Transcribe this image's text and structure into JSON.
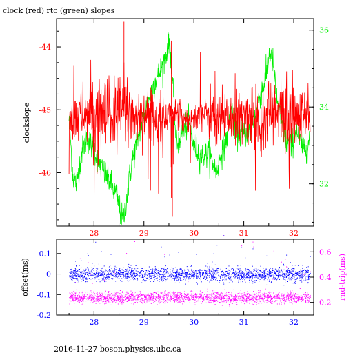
{
  "title": "clock (red) rtc (green) slopes",
  "footer": "2016-11-27 boson.physics.ubc.ca",
  "colors": {
    "clock": "#ff0000",
    "rtc": "#00ee00",
    "offset": "#0000ff",
    "rndtrip": "#ff00ff",
    "axis": "#000000"
  },
  "chart_data": [
    {
      "type": "line",
      "xlim": [
        27.25,
        32.4
      ],
      "x_ticks": [
        "28",
        "29",
        "30",
        "31",
        "32"
      ],
      "ylabel": "clockslope",
      "ylim": [
        -46.85,
        -43.55
      ],
      "y_ticks": [
        "-44",
        "-45",
        "-46"
      ],
      "y2label": "",
      "y2lim": [
        30.9,
        36.3
      ],
      "y2_ticks": [
        "36",
        "34",
        "32"
      ],
      "grid": false,
      "series": [
        {
          "name": "clock",
          "color": "red",
          "note": "dense noisy trace around -45.1",
          "x": [
            27.5,
            27.7,
            27.9,
            28.1,
            28.3,
            28.5,
            28.6,
            28.8,
            29.0,
            29.2,
            29.4,
            29.5,
            29.7,
            29.9,
            30.1,
            30.3,
            30.5,
            30.7,
            30.9,
            31.1,
            31.3,
            31.5,
            31.6,
            31.8,
            32.0,
            32.2,
            32.33
          ],
          "y": [
            -45.1,
            -45.1,
            -45.05,
            -45.1,
            -45.15,
            -45.1,
            -45.0,
            -45.1,
            -45.1,
            -45.1,
            -45.2,
            -45.05,
            -45.1,
            -45.15,
            -45.1,
            -45.05,
            -45.1,
            -45.1,
            -45.15,
            -45.1,
            -45.15,
            -45.1,
            -45.05,
            -45.1,
            -45.15,
            -45.1,
            -45.1
          ]
        },
        {
          "name": "rtc",
          "color": "green",
          "axis": "right",
          "x": [
            27.5,
            27.58,
            27.65,
            27.75,
            27.85,
            28.0,
            28.15,
            28.3,
            28.45,
            28.58,
            28.65,
            28.75,
            28.9,
            29.05,
            29.2,
            29.35,
            29.45,
            29.52,
            29.58,
            29.65,
            29.75,
            29.9,
            30.0,
            30.15,
            30.3,
            30.45,
            30.55,
            30.65,
            30.75,
            30.85,
            31.0,
            31.15,
            31.3,
            31.45,
            31.52,
            31.58,
            31.65,
            31.75,
            31.85,
            31.95,
            32.05,
            32.15,
            32.25,
            32.33
          ],
          "y": [
            33.7,
            32.2,
            32.0,
            32.8,
            33.2,
            32.9,
            32.4,
            32.1,
            31.7,
            31.0,
            31.6,
            32.5,
            33.3,
            34.0,
            34.6,
            35.0,
            35.4,
            35.7,
            34.5,
            33.0,
            33.3,
            33.6,
            33.0,
            32.7,
            32.8,
            32.3,
            32.8,
            33.1,
            34.0,
            33.3,
            33.3,
            33.4,
            34.2,
            34.8,
            35.5,
            35.2,
            34.3,
            33.6,
            33.1,
            33.0,
            33.4,
            33.0,
            32.9,
            33.2
          ]
        }
      ]
    },
    {
      "type": "scatter",
      "xlim": [
        27.25,
        32.4
      ],
      "x_ticks": [
        "28",
        "29",
        "30",
        "31",
        "32"
      ],
      "ylabel": "offset(ms)",
      "ylim": [
        -0.2,
        0.17
      ],
      "y_ticks": [
        "0.1",
        "0",
        "-0.1",
        "-0.2"
      ],
      "y2label": "rnd-trip(ms)",
      "y2lim": [
        0.1,
        0.7
      ],
      "y2_ticks": [
        "0.6",
        "0.4",
        "0.2"
      ],
      "grid": false,
      "series": [
        {
          "name": "offset",
          "color": "blue",
          "axis": "left",
          "x": [
            27.5,
            28.0,
            28.5,
            29.0,
            29.5,
            30.0,
            30.5,
            31.0,
            31.5,
            32.0,
            32.33
          ],
          "y": [
            0.0,
            0.0,
            0.005,
            0.0,
            0.0,
            0.0,
            0.0,
            0.0,
            0.0,
            0.0,
            0.0
          ],
          "spread": [
            -0.05,
            0.05
          ]
        },
        {
          "name": "rnd-trip",
          "color": "magenta",
          "axis": "right",
          "x": [
            27.5,
            28.0,
            28.5,
            29.0,
            29.5,
            30.0,
            30.5,
            31.0,
            31.5,
            32.0,
            32.33
          ],
          "y": [
            0.24,
            0.24,
            0.24,
            0.24,
            0.24,
            0.24,
            0.24,
            0.24,
            0.24,
            0.24,
            0.24
          ],
          "spread": [
            0.18,
            0.28
          ]
        }
      ]
    }
  ]
}
